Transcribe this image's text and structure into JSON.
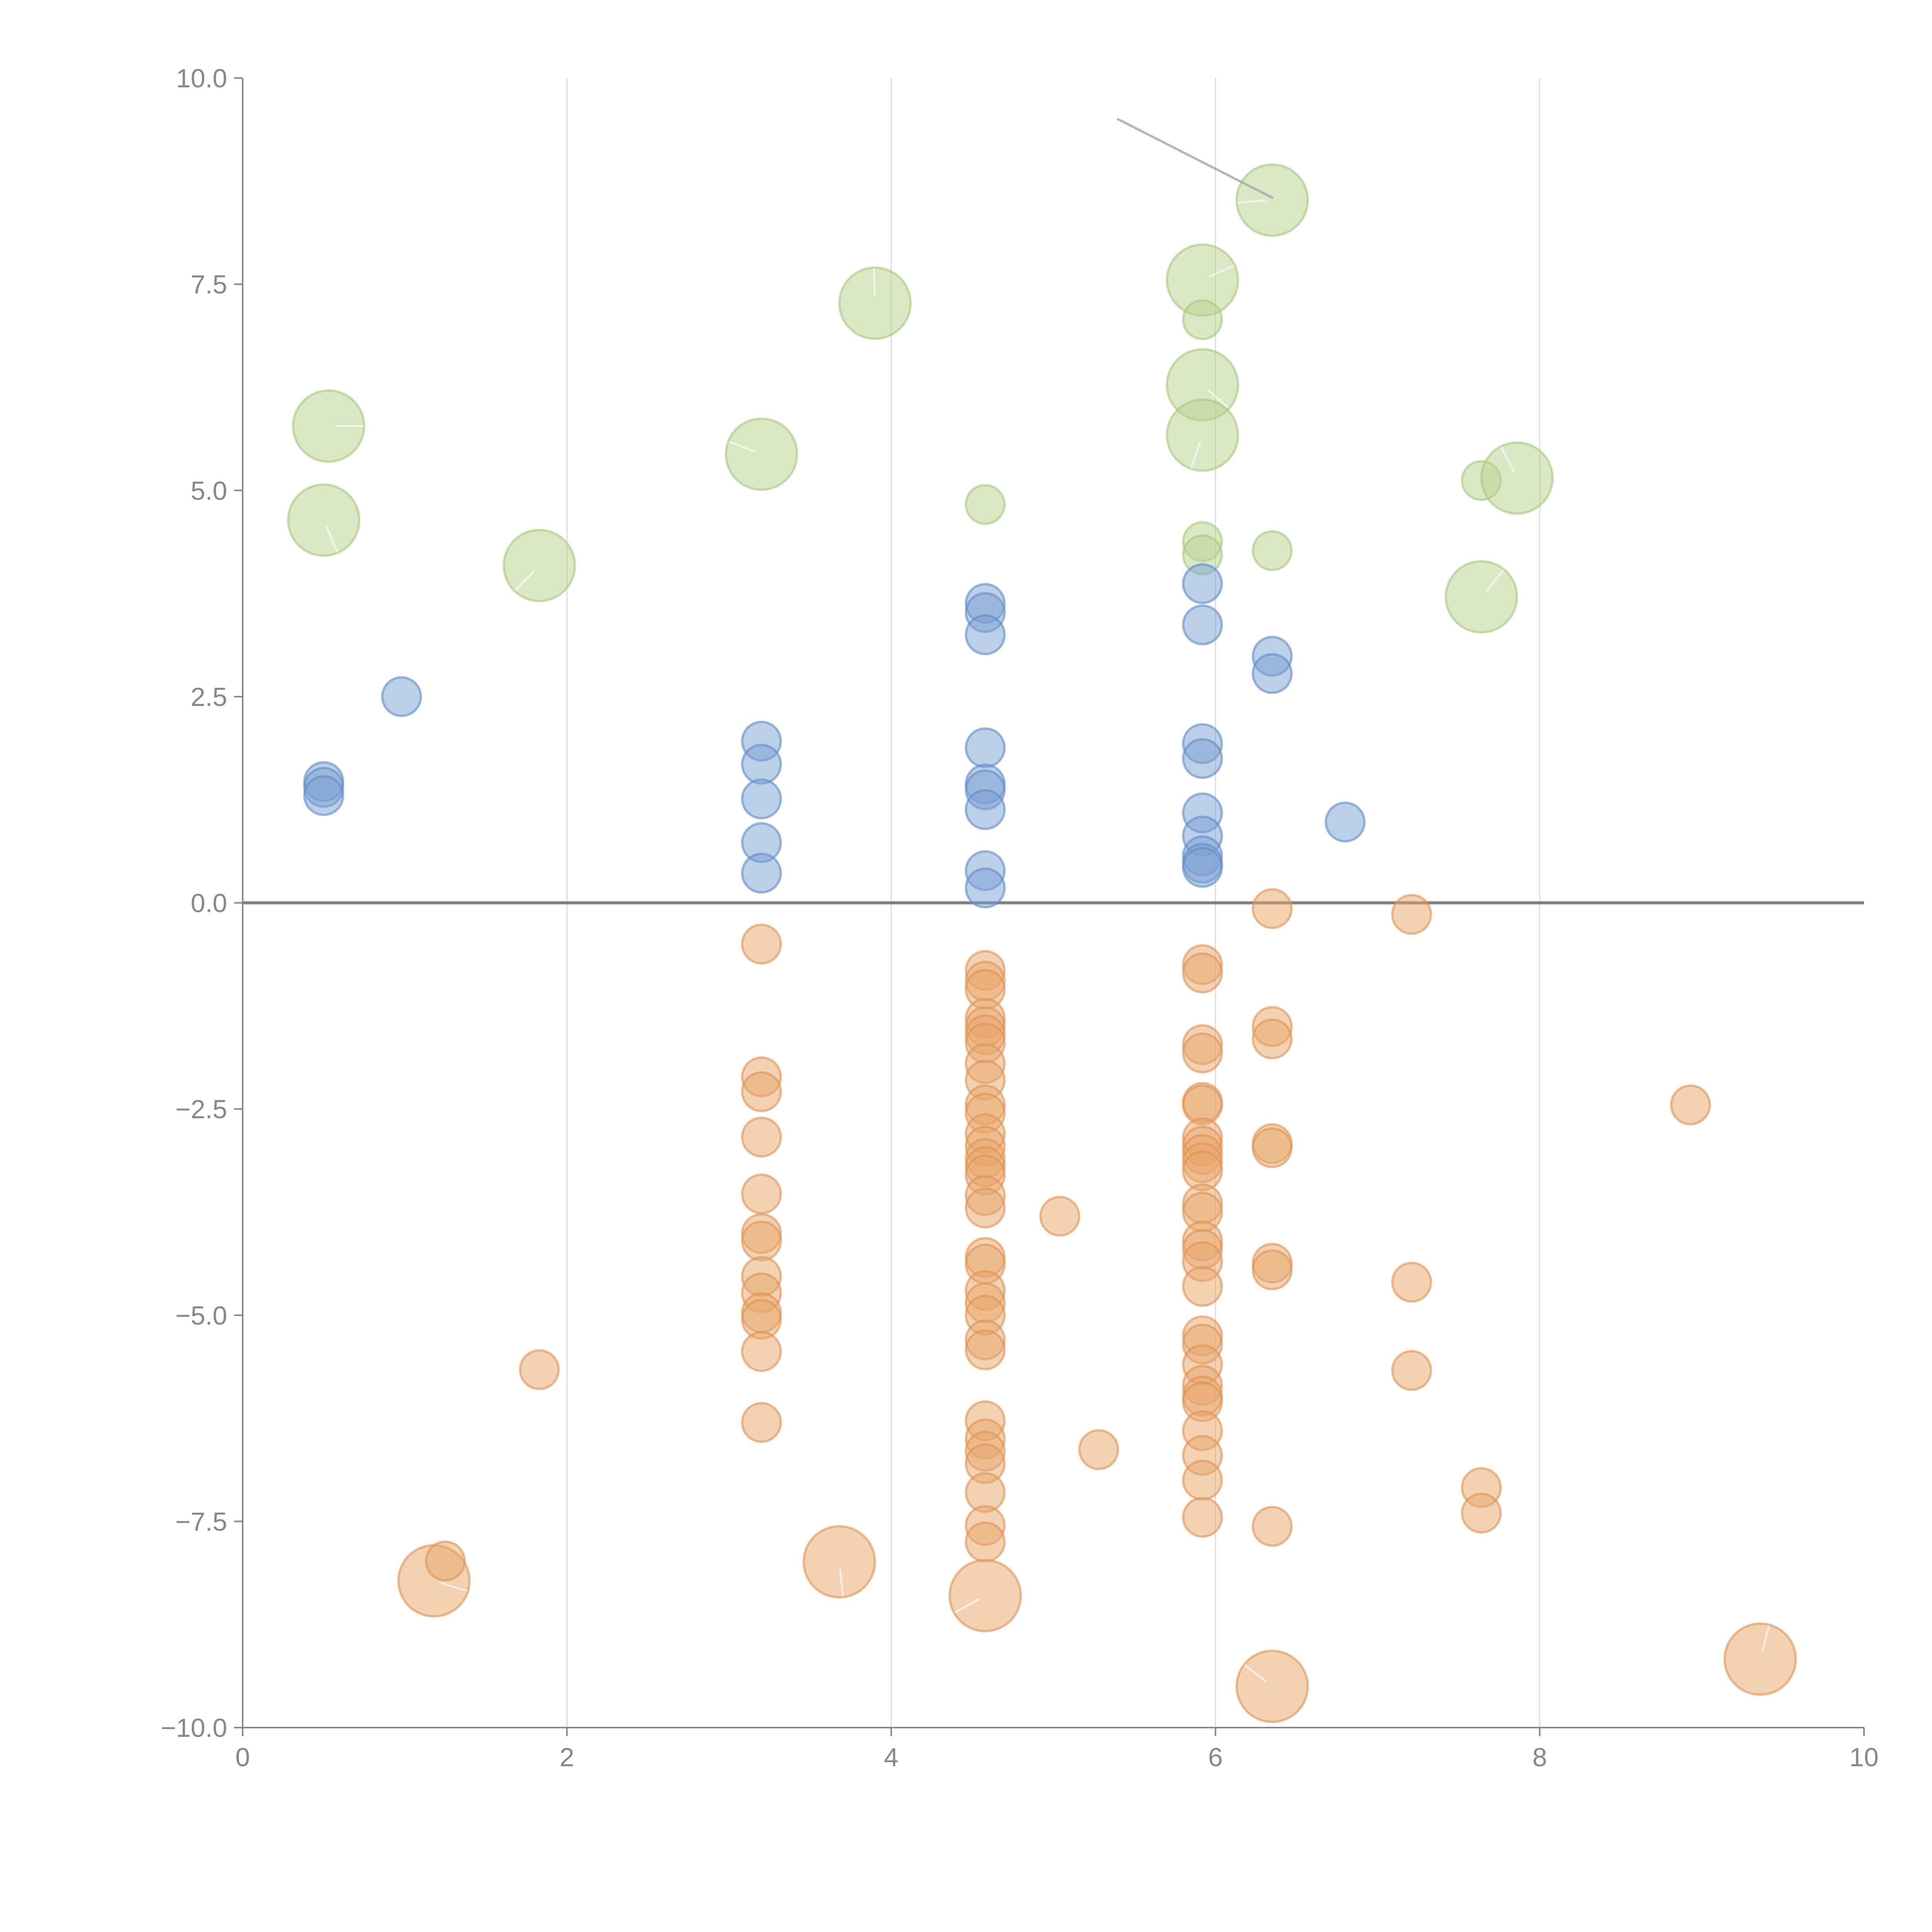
{
  "chart_data": {
    "type": "scatter",
    "title": "",
    "xlabel": "",
    "ylabel": "",
    "xlim": [
      0,
      10
    ],
    "ylim": [
      -10,
      10
    ],
    "grid": "vertical",
    "legend": "none",
    "x_ticks": [
      "0",
      "2",
      "4",
      "6",
      "8",
      "10"
    ],
    "y_ticks": [
      "10.0",
      "7.5",
      "5.0",
      "2.5",
      "0.0",
      "−2.5",
      "−5.0",
      "−7.5",
      "−10.0"
    ],
    "x_tick_values": [
      0,
      2,
      4,
      6,
      8,
      10
    ],
    "y_tick_values": [
      10,
      7.5,
      5,
      2.5,
      0,
      -2.5,
      -5,
      -7.5,
      -10
    ],
    "reference_line": {
      "axis": "y",
      "value": 0
    },
    "annotation_line": {
      "from": [
        5.4,
        9.5
      ],
      "to": [
        6.35,
        8.55
      ]
    },
    "series": [
      {
        "name": "green",
        "color": "#b5d28e",
        "points": [
          {
            "x": 0.53,
            "y": 5.78,
            "size": "large"
          },
          {
            "x": 0.5,
            "y": 4.64,
            "size": "large"
          },
          {
            "x": 1.83,
            "y": 4.09,
            "size": "large"
          },
          {
            "x": 3.2,
            "y": 5.44,
            "size": "large"
          },
          {
            "x": 3.9,
            "y": 7.27,
            "size": "large"
          },
          {
            "x": 4.58,
            "y": 4.83,
            "size": "small"
          },
          {
            "x": 5.92,
            "y": 7.55,
            "size": "large"
          },
          {
            "x": 5.92,
            "y": 7.07,
            "size": "small"
          },
          {
            "x": 5.92,
            "y": 6.28,
            "size": "large"
          },
          {
            "x": 5.92,
            "y": 5.67,
            "size": "large"
          },
          {
            "x": 5.92,
            "y": 4.38,
            "size": "small"
          },
          {
            "x": 5.92,
            "y": 4.22,
            "size": "small"
          },
          {
            "x": 6.35,
            "y": 8.52,
            "size": "large"
          },
          {
            "x": 6.35,
            "y": 4.27,
            "size": "small"
          },
          {
            "x": 7.64,
            "y": 5.12,
            "size": "small"
          },
          {
            "x": 7.86,
            "y": 5.15,
            "size": "large"
          },
          {
            "x": 7.64,
            "y": 3.71,
            "size": "large"
          }
        ]
      },
      {
        "name": "blue",
        "color": "#7a9fd1",
        "points": [
          {
            "x": 0.5,
            "y": 1.47,
            "size": "small"
          },
          {
            "x": 0.5,
            "y": 1.4,
            "size": "small"
          },
          {
            "x": 0.5,
            "y": 1.3,
            "size": "small"
          },
          {
            "x": 0.98,
            "y": 2.5,
            "size": "small"
          },
          {
            "x": 3.2,
            "y": 1.96,
            "size": "small"
          },
          {
            "x": 3.2,
            "y": 1.68,
            "size": "small"
          },
          {
            "x": 3.2,
            "y": 1.26,
            "size": "small"
          },
          {
            "x": 3.2,
            "y": 0.73,
            "size": "small"
          },
          {
            "x": 3.2,
            "y": 0.36,
            "size": "small"
          },
          {
            "x": 4.58,
            "y": 3.63,
            "size": "small"
          },
          {
            "x": 4.58,
            "y": 3.52,
            "size": "small"
          },
          {
            "x": 4.58,
            "y": 3.25,
            "size": "small"
          },
          {
            "x": 4.58,
            "y": 1.88,
            "size": "small"
          },
          {
            "x": 4.58,
            "y": 1.44,
            "size": "small"
          },
          {
            "x": 4.58,
            "y": 1.37,
            "size": "small"
          },
          {
            "x": 4.58,
            "y": 1.13,
            "size": "small"
          },
          {
            "x": 4.58,
            "y": 0.39,
            "size": "small"
          },
          {
            "x": 4.58,
            "y": 0.18,
            "size": "small"
          },
          {
            "x": 5.92,
            "y": 3.87,
            "size": "small"
          },
          {
            "x": 5.92,
            "y": 3.37,
            "size": "small"
          },
          {
            "x": 5.92,
            "y": 1.93,
            "size": "small"
          },
          {
            "x": 5.92,
            "y": 1.75,
            "size": "small"
          },
          {
            "x": 5.92,
            "y": 1.09,
            "size": "small"
          },
          {
            "x": 5.92,
            "y": 0.81,
            "size": "small"
          },
          {
            "x": 5.92,
            "y": 0.57,
            "size": "small"
          },
          {
            "x": 5.92,
            "y": 0.48,
            "size": "small"
          },
          {
            "x": 5.92,
            "y": 0.43,
            "size": "small"
          },
          {
            "x": 6.35,
            "y": 2.99,
            "size": "small"
          },
          {
            "x": 6.35,
            "y": 2.78,
            "size": "small"
          },
          {
            "x": 6.8,
            "y": 0.98,
            "size": "small"
          }
        ]
      },
      {
        "name": "orange",
        "color": "#e8a56a",
        "points": [
          {
            "x": 1.18,
            "y": -8.22,
            "size": "large"
          },
          {
            "x": 1.25,
            "y": -7.98,
            "size": "small"
          },
          {
            "x": 1.83,
            "y": -5.66,
            "size": "small"
          },
          {
            "x": 3.2,
            "y": -0.5,
            "size": "small"
          },
          {
            "x": 3.2,
            "y": -2.11,
            "size": "small"
          },
          {
            "x": 3.2,
            "y": -2.29,
            "size": "small"
          },
          {
            "x": 3.2,
            "y": -2.84,
            "size": "small"
          },
          {
            "x": 3.2,
            "y": -3.53,
            "size": "small"
          },
          {
            "x": 3.2,
            "y": -4.01,
            "size": "small"
          },
          {
            "x": 3.2,
            "y": -4.1,
            "size": "small"
          },
          {
            "x": 3.2,
            "y": -4.53,
            "size": "small"
          },
          {
            "x": 3.2,
            "y": -4.73,
            "size": "small"
          },
          {
            "x": 3.2,
            "y": -4.97,
            "size": "small"
          },
          {
            "x": 3.2,
            "y": -5.05,
            "size": "small"
          },
          {
            "x": 3.2,
            "y": -5.44,
            "size": "small"
          },
          {
            "x": 3.2,
            "y": -6.3,
            "size": "small"
          },
          {
            "x": 3.68,
            "y": -7.99,
            "size": "large"
          },
          {
            "x": 4.58,
            "y": -0.82,
            "size": "small"
          },
          {
            "x": 4.58,
            "y": -0.95,
            "size": "small"
          },
          {
            "x": 4.58,
            "y": -1.05,
            "size": "small"
          },
          {
            "x": 4.58,
            "y": -1.4,
            "size": "small"
          },
          {
            "x": 4.58,
            "y": -1.5,
            "size": "small"
          },
          {
            "x": 4.58,
            "y": -1.6,
            "size": "small"
          },
          {
            "x": 4.58,
            "y": -1.7,
            "size": "small"
          },
          {
            "x": 4.58,
            "y": -1.95,
            "size": "small"
          },
          {
            "x": 4.58,
            "y": -2.15,
            "size": "small"
          },
          {
            "x": 4.58,
            "y": -2.45,
            "size": "small"
          },
          {
            "x": 4.58,
            "y": -2.55,
            "size": "small"
          },
          {
            "x": 4.58,
            "y": -2.8,
            "size": "small"
          },
          {
            "x": 4.58,
            "y": -2.95,
            "size": "small"
          },
          {
            "x": 4.58,
            "y": -3.1,
            "size": "small"
          },
          {
            "x": 4.58,
            "y": -3.2,
            "size": "small"
          },
          {
            "x": 4.58,
            "y": -3.3,
            "size": "small"
          },
          {
            "x": 4.58,
            "y": -3.55,
            "size": "small"
          },
          {
            "x": 4.58,
            "y": -3.7,
            "size": "small"
          },
          {
            "x": 4.58,
            "y": -4.3,
            "size": "small"
          },
          {
            "x": 4.58,
            "y": -4.38,
            "size": "small"
          },
          {
            "x": 4.58,
            "y": -4.7,
            "size": "small"
          },
          {
            "x": 4.58,
            "y": -4.85,
            "size": "small"
          },
          {
            "x": 4.58,
            "y": -5.0,
            "size": "small"
          },
          {
            "x": 4.58,
            "y": -5.3,
            "size": "small"
          },
          {
            "x": 4.58,
            "y": -5.42,
            "size": "small"
          },
          {
            "x": 4.58,
            "y": -6.28,
            "size": "small"
          },
          {
            "x": 4.58,
            "y": -6.5,
            "size": "small"
          },
          {
            "x": 4.58,
            "y": -6.65,
            "size": "small"
          },
          {
            "x": 4.58,
            "y": -6.8,
            "size": "small"
          },
          {
            "x": 4.58,
            "y": -7.15,
            "size": "small"
          },
          {
            "x": 4.58,
            "y": -7.55,
            "size": "small"
          },
          {
            "x": 4.58,
            "y": -7.75,
            "size": "small"
          },
          {
            "x": 4.58,
            "y": -8.4,
            "size": "large"
          },
          {
            "x": 5.04,
            "y": -3.8,
            "size": "small"
          },
          {
            "x": 5.28,
            "y": -6.63,
            "size": "small"
          },
          {
            "x": 5.92,
            "y": -0.75,
            "size": "small"
          },
          {
            "x": 5.92,
            "y": -0.85,
            "size": "small"
          },
          {
            "x": 5.92,
            "y": -1.72,
            "size": "small"
          },
          {
            "x": 5.92,
            "y": -1.82,
            "size": "small"
          },
          {
            "x": 5.92,
            "y": -2.42,
            "size": "small"
          },
          {
            "x": 5.92,
            "y": -2.45,
            "size": "small"
          },
          {
            "x": 5.92,
            "y": -2.85,
            "size": "small"
          },
          {
            "x": 5.92,
            "y": -2.95,
            "size": "small"
          },
          {
            "x": 5.92,
            "y": -3.05,
            "size": "small"
          },
          {
            "x": 5.92,
            "y": -3.15,
            "size": "small"
          },
          {
            "x": 5.92,
            "y": -3.25,
            "size": "small"
          },
          {
            "x": 5.92,
            "y": -3.65,
            "size": "small"
          },
          {
            "x": 5.92,
            "y": -3.75,
            "size": "small"
          },
          {
            "x": 5.92,
            "y": -4.1,
            "size": "small"
          },
          {
            "x": 5.92,
            "y": -4.2,
            "size": "small"
          },
          {
            "x": 5.92,
            "y": -4.35,
            "size": "small"
          },
          {
            "x": 5.92,
            "y": -4.65,
            "size": "small"
          },
          {
            "x": 5.92,
            "y": -5.25,
            "size": "small"
          },
          {
            "x": 5.92,
            "y": -5.35,
            "size": "small"
          },
          {
            "x": 5.92,
            "y": -5.6,
            "size": "small"
          },
          {
            "x": 5.92,
            "y": -5.85,
            "size": "small"
          },
          {
            "x": 5.92,
            "y": -5.98,
            "size": "small"
          },
          {
            "x": 5.92,
            "y": -6.05,
            "size": "small"
          },
          {
            "x": 5.92,
            "y": -6.4,
            "size": "small"
          },
          {
            "x": 5.92,
            "y": -6.7,
            "size": "small"
          },
          {
            "x": 5.92,
            "y": -7.0,
            "size": "small"
          },
          {
            "x": 5.92,
            "y": -7.45,
            "size": "small"
          },
          {
            "x": 6.35,
            "y": -0.07,
            "size": "small"
          },
          {
            "x": 6.35,
            "y": -1.5,
            "size": "small"
          },
          {
            "x": 6.35,
            "y": -1.65,
            "size": "small"
          },
          {
            "x": 6.35,
            "y": -2.92,
            "size": "small"
          },
          {
            "x": 6.35,
            "y": -2.97,
            "size": "small"
          },
          {
            "x": 6.35,
            "y": -4.37,
            "size": "small"
          },
          {
            "x": 6.35,
            "y": -4.45,
            "size": "small"
          },
          {
            "x": 6.35,
            "y": -7.56,
            "size": "small"
          },
          {
            "x": 6.35,
            "y": -9.5,
            "size": "large"
          },
          {
            "x": 7.21,
            "y": -0.14,
            "size": "small"
          },
          {
            "x": 7.21,
            "y": -4.6,
            "size": "small"
          },
          {
            "x": 7.21,
            "y": -5.67,
            "size": "small"
          },
          {
            "x": 7.64,
            "y": -7.09,
            "size": "small"
          },
          {
            "x": 7.64,
            "y": -7.4,
            "size": "small"
          },
          {
            "x": 8.93,
            "y": -2.45,
            "size": "small"
          },
          {
            "x": 9.36,
            "y": -9.17,
            "size": "large"
          }
        ]
      }
    ]
  }
}
